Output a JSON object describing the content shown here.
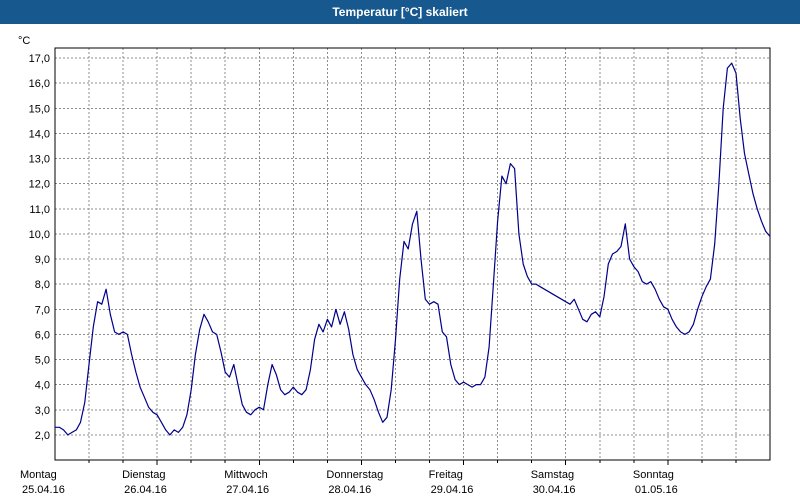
{
  "window": {
    "title": "Temperatur [°C] skaliert"
  },
  "colors": {
    "header_bg": "#17598f",
    "header_text": "#ffffff",
    "line": "#00008b",
    "grid": "#8c8c8c",
    "plot_border": "#000000",
    "background": "#ffffff",
    "text": "#000000"
  },
  "chart_data": {
    "type": "line",
    "title": "Temperatur [°C] skaliert",
    "ylabel": "°C",
    "xlabel": "",
    "grid": true,
    "legend_position": "none",
    "ylim": [
      1.0,
      17.4
    ],
    "yticks": [
      2,
      3,
      4,
      5,
      6,
      7,
      8,
      9,
      10,
      11,
      12,
      13,
      14,
      15,
      16,
      17
    ],
    "ytick_labels": [
      "2,0",
      "3,0",
      "4,0",
      "5,0",
      "6,0",
      "7,0",
      "8,0",
      "9,0",
      "10,0",
      "11,0",
      "12,0",
      "13,0",
      "14,0",
      "15,0",
      "16,0",
      "17,0"
    ],
    "x_axis": {
      "start_hour": 0,
      "end_hour": 168,
      "step_hours": 1,
      "gridline_every_hours": 8
    },
    "days": [
      {
        "name": "Montag",
        "date": "25.04.16"
      },
      {
        "name": "Dienstag",
        "date": "26.04.16"
      },
      {
        "name": "Mittwoch",
        "date": "27.04.16"
      },
      {
        "name": "Donnerstag",
        "date": "28.04.16"
      },
      {
        "name": "Freitag",
        "date": "29.04.16"
      },
      {
        "name": "Samstag",
        "date": "30.04.16"
      },
      {
        "name": "Sonntag",
        "date": "01.05.16"
      }
    ],
    "series": [
      {
        "name": "Temperatur",
        "color": "#00008b",
        "values": [
          2.3,
          2.3,
          2.2,
          2.0,
          2.1,
          2.2,
          2.5,
          3.3,
          4.8,
          6.3,
          7.3,
          7.2,
          7.8,
          6.8,
          6.1,
          6.0,
          6.1,
          6.0,
          5.2,
          4.5,
          3.9,
          3.5,
          3.1,
          2.9,
          2.8,
          2.5,
          2.2,
          2.0,
          2.2,
          2.1,
          2.3,
          2.8,
          3.8,
          5.2,
          6.2,
          6.8,
          6.5,
          6.1,
          6.0,
          5.3,
          4.5,
          4.3,
          4.8,
          4.0,
          3.2,
          2.9,
          2.8,
          3.0,
          3.1,
          3.0,
          4.0,
          4.8,
          4.4,
          3.8,
          3.6,
          3.7,
          3.9,
          3.7,
          3.6,
          3.8,
          4.6,
          5.8,
          6.4,
          6.1,
          6.6,
          6.3,
          7.0,
          6.4,
          6.9,
          6.2,
          5.2,
          4.6,
          4.3,
          4.0,
          3.8,
          3.4,
          2.9,
          2.5,
          2.7,
          3.8,
          5.8,
          8.2,
          9.7,
          9.4,
          10.4,
          10.9,
          9.0,
          7.4,
          7.2,
          7.3,
          7.2,
          6.1,
          5.9,
          4.8,
          4.2,
          4.0,
          4.1,
          4.0,
          3.9,
          4.0,
          4.0,
          4.3,
          5.5,
          8.0,
          10.5,
          12.3,
          12.0,
          12.8,
          12.6,
          10.0,
          8.8,
          8.3,
          8.0,
          8.0,
          7.9,
          7.8,
          7.7,
          7.6,
          7.5,
          7.4,
          7.3,
          7.2,
          7.4,
          7.0,
          6.6,
          6.5,
          6.8,
          6.9,
          6.7,
          7.5,
          8.8,
          9.2,
          9.3,
          9.5,
          10.4,
          9.0,
          8.7,
          8.5,
          8.1,
          8.0,
          8.1,
          7.8,
          7.4,
          7.1,
          7.0,
          6.6,
          6.3,
          6.1,
          6.0,
          6.1,
          6.4,
          7.0,
          7.5,
          7.9,
          8.2,
          9.6,
          12.0,
          15.0,
          16.6,
          16.8,
          16.4,
          14.6,
          13.2,
          12.4,
          11.6,
          11.0,
          10.5,
          10.1,
          9.9
        ]
      }
    ]
  }
}
